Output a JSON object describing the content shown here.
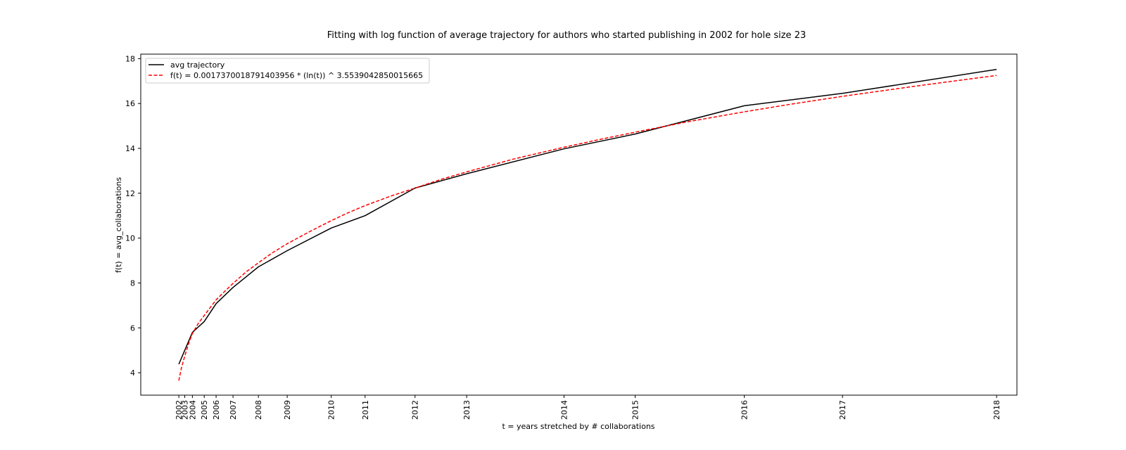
{
  "chart_data": {
    "type": "line",
    "title": "Fitting with log function of average trajectory for authors who started publishing in 2002 for hole size 23",
    "xlabel": "t = years stretched by # collaborations",
    "ylabel": "f(t) = avg_collaborations",
    "ylim": [
      3,
      18.2
    ],
    "yticks": [
      4,
      6,
      8,
      10,
      12,
      14,
      16,
      18
    ],
    "xlim": [
      0.55,
      10.9
    ],
    "x_tick_labels": [
      "2002",
      "2003",
      "2004",
      "2005",
      "2006",
      "2007",
      "2008",
      "2009",
      "2010",
      "2011",
      "2012",
      "2013",
      "2014",
      "2015",
      "2016",
      "2017",
      "2018"
    ],
    "x_tick_positions": [
      1.0,
      1.07,
      1.16,
      1.3,
      1.44,
      1.64,
      1.94,
      2.28,
      2.8,
      3.2,
      3.79,
      4.4,
      5.55,
      6.39,
      7.68,
      8.84,
      10.66
    ],
    "legend_position": "upper left",
    "grid": false,
    "series": [
      {
        "name": "avg trajectory",
        "style": "solid",
        "color": "#000000",
        "x": [
          1.0,
          1.16,
          1.3,
          1.44,
          1.64,
          1.94,
          2.28,
          2.8,
          3.2,
          3.79,
          4.4,
          5.55,
          6.39,
          7.68,
          8.84,
          10.66
        ],
        "y": [
          4.38,
          5.8,
          6.28,
          7.08,
          7.8,
          8.72,
          9.44,
          10.45,
          11.0,
          12.23,
          12.87,
          13.98,
          14.64,
          15.9,
          16.45,
          17.52
        ]
      },
      {
        "name": "f(t) = 0.0017370018791403956 * (ln(t)) ^ 3.5539042850015665",
        "style": "dashed",
        "color": "#ff0000",
        "x": [
          1.0,
          1.03,
          1.07,
          1.12,
          1.16,
          1.23,
          1.3,
          1.37,
          1.44,
          1.54,
          1.64,
          1.79,
          1.94,
          2.1,
          2.28,
          2.55,
          2.8,
          3.0,
          3.2,
          3.5,
          3.79,
          4.1,
          4.4,
          4.95,
          5.55,
          5.95,
          6.39,
          7.0,
          7.68,
          8.25,
          8.84,
          9.75,
          10.66
        ],
        "y": [
          3.65,
          4.2,
          4.75,
          5.35,
          5.75,
          6.2,
          6.55,
          6.9,
          7.25,
          7.62,
          7.98,
          8.48,
          8.9,
          9.33,
          9.75,
          10.3,
          10.78,
          11.13,
          11.45,
          11.87,
          12.23,
          12.62,
          12.95,
          13.52,
          14.05,
          14.38,
          14.72,
          15.18,
          15.63,
          15.98,
          16.32,
          16.8,
          17.25
        ]
      }
    ]
  }
}
